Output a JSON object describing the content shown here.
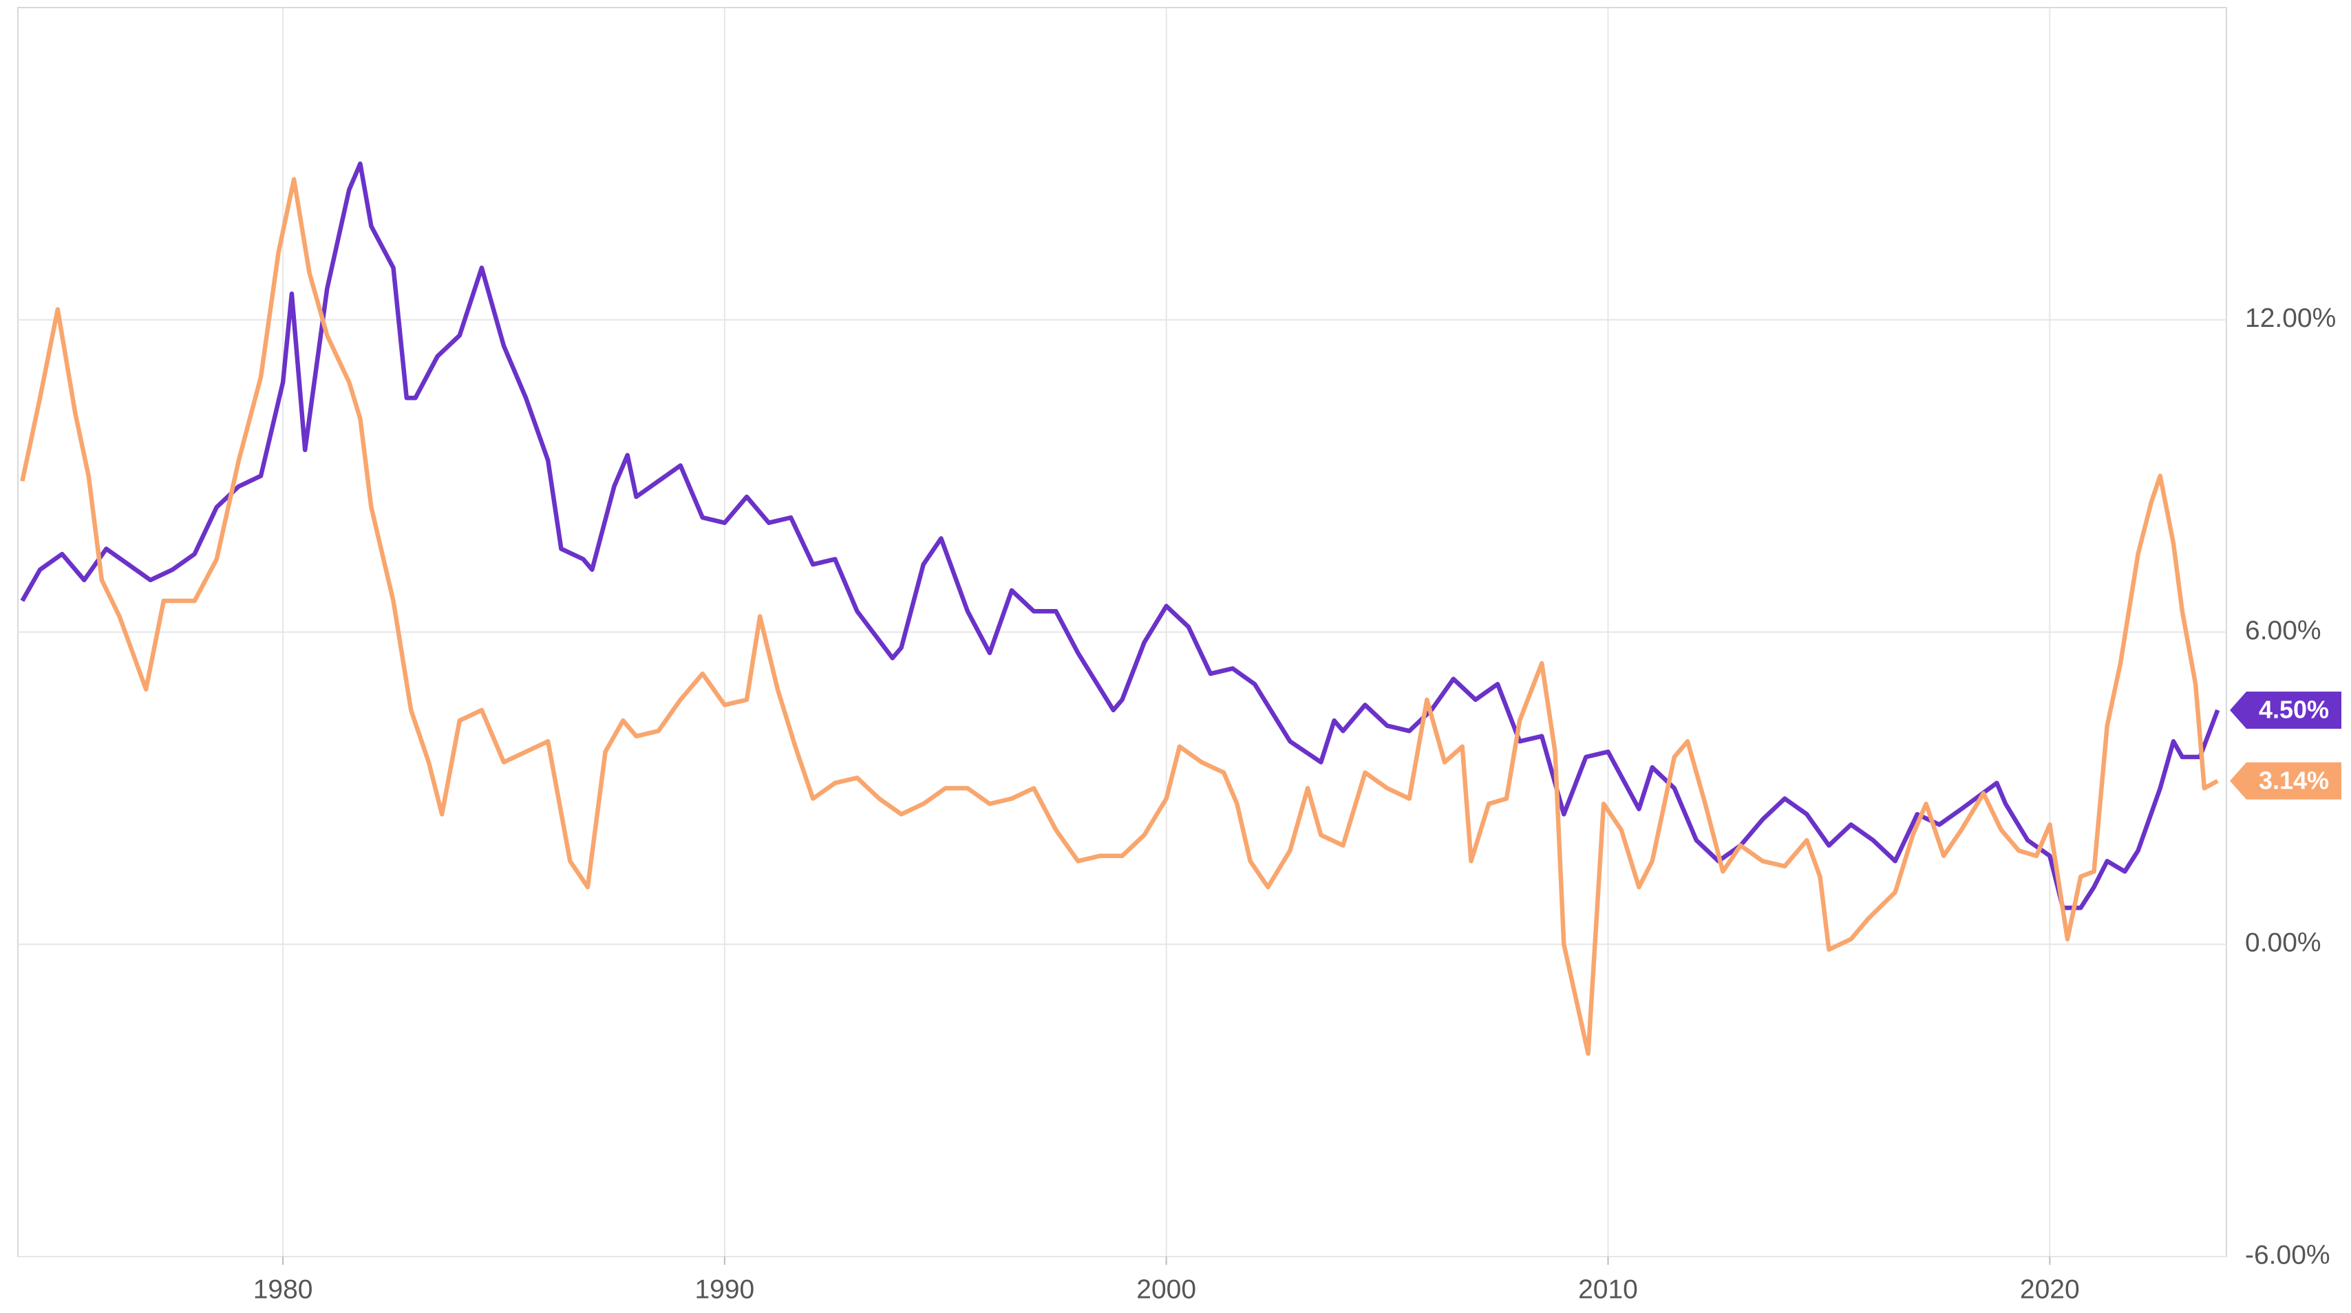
{
  "chart_data": {
    "type": "line",
    "xlim": [
      1974,
      2024
    ],
    "xticks": [
      1980,
      1990,
      2000,
      2010,
      2020
    ],
    "ylim": [
      -6,
      18
    ],
    "yticks": [
      {
        "value": -6,
        "label": "-6.00%"
      },
      {
        "value": 0,
        "label": "0.00%"
      },
      {
        "value": 6,
        "label": "6.00%"
      },
      {
        "value": 12,
        "label": "12.00%"
      }
    ],
    "grid": true,
    "series": [
      {
        "color": "#6a32c9",
        "end_label": "4.50%",
        "x": [
          1974.1,
          1974.5,
          1975,
          1975.5,
          1976,
          1976.5,
          1977,
          1977.5,
          1978,
          1978.5,
          1979,
          1979.5,
          1980,
          1980.2,
          1980.5,
          1981,
          1981.5,
          1981.75,
          1982,
          1982.5,
          1982.8,
          1983,
          1983.5,
          1984,
          1984.5,
          1985,
          1985.5,
          1986,
          1986.3,
          1986.8,
          1987,
          1987.5,
          1987.8,
          1988,
          1988.5,
          1989,
          1989.5,
          1990,
          1990.5,
          1991,
          1991.5,
          1992,
          1992.5,
          1993,
          1993.8,
          1994,
          1994.5,
          1994.9,
          1995.5,
          1996,
          1996.5,
          1997,
          1997.5,
          1998,
          1998.8,
          1999,
          1999.5,
          2000,
          2000.5,
          2001,
          2001.5,
          2002,
          2002.8,
          2003.5,
          2003.8,
          2004,
          2004.5,
          2005,
          2005.5,
          2006,
          2006.5,
          2007,
          2007.5,
          2008,
          2008.5,
          2009,
          2009.5,
          2010,
          2010.7,
          2011,
          2011.5,
          2012,
          2012.5,
          2013,
          2013.5,
          2014,
          2014.5,
          2015,
          2015.5,
          2016,
          2016.5,
          2017,
          2017.5,
          2018,
          2018.8,
          2019,
          2019.5,
          2020,
          2020.3,
          2020.7,
          2021,
          2021.3,
          2021.7,
          2022,
          2022.5,
          2022.8,
          2023,
          2023.4,
          2023.8
        ],
        "values": [
          6.6,
          7.2,
          7.5,
          7.0,
          7.6,
          7.3,
          7.0,
          7.2,
          7.5,
          8.4,
          8.8,
          9.0,
          10.8,
          12.5,
          9.5,
          12.6,
          14.5,
          15.0,
          13.8,
          13.0,
          10.5,
          10.5,
          11.3,
          11.7,
          13.0,
          11.5,
          10.5,
          9.3,
          7.6,
          7.4,
          7.2,
          8.8,
          9.4,
          8.6,
          8.9,
          9.2,
          8.2,
          8.1,
          8.6,
          8.1,
          8.2,
          7.3,
          7.4,
          6.4,
          5.5,
          5.7,
          7.3,
          7.8,
          6.4,
          5.6,
          6.8,
          6.4,
          6.4,
          5.6,
          4.5,
          4.7,
          5.8,
          6.5,
          6.1,
          5.2,
          5.3,
          5.0,
          3.9,
          3.5,
          4.3,
          4.1,
          4.6,
          4.2,
          4.1,
          4.5,
          5.1,
          4.7,
          5.0,
          3.9,
          4.0,
          2.5,
          3.6,
          3.7,
          2.6,
          3.4,
          3.0,
          2.0,
          1.6,
          1.9,
          2.4,
          2.8,
          2.5,
          1.9,
          2.3,
          2.0,
          1.6,
          2.5,
          2.3,
          2.6,
          3.1,
          2.7,
          2.0,
          1.7,
          0.7,
          0.7,
          1.1,
          1.6,
          1.4,
          1.8,
          3.0,
          3.9,
          3.6,
          3.6,
          4.5
        ]
      },
      {
        "color": "#f8a66e",
        "end_label": "3.14%",
        "x": [
          1974.1,
          1974.5,
          1974.9,
          1975.3,
          1975.6,
          1975.9,
          1976.3,
          1976.6,
          1976.9,
          1977.3,
          1977.6,
          1978,
          1978.5,
          1979,
          1979.5,
          1979.9,
          1980.25,
          1980.6,
          1981,
          1981.5,
          1981.75,
          1982,
          1982.5,
          1982.9,
          1983.3,
          1983.6,
          1984,
          1984.5,
          1985,
          1985.5,
          1986,
          1986.5,
          1986.9,
          1987.3,
          1987.7,
          1988,
          1988.5,
          1989,
          1989.5,
          1990,
          1990.5,
          1990.8,
          1991.2,
          1991.6,
          1992,
          1992.5,
          1993,
          1993.5,
          1994,
          1994.5,
          1995,
          1995.5,
          1996,
          1996.5,
          1997,
          1997.5,
          1998,
          1998.5,
          1999,
          1999.5,
          2000,
          2000.3,
          2000.8,
          2001.3,
          2001.6,
          2001.9,
          2002.3,
          2002.8,
          2003.2,
          2003.5,
          2004,
          2004.5,
          2005,
          2005.5,
          2005.9,
          2006.3,
          2006.7,
          2006.9,
          2007.3,
          2007.7,
          2008,
          2008.5,
          2008.8,
          2009,
          2009.55,
          2009.9,
          2010.3,
          2010.7,
          2011,
          2011.5,
          2011.8,
          2012.2,
          2012.6,
          2013,
          2013.5,
          2014,
          2014.5,
          2014.8,
          2015,
          2015.5,
          2015.9,
          2016.5,
          2016.9,
          2017.2,
          2017.6,
          2018,
          2018.5,
          2018.9,
          2019.3,
          2019.7,
          2020,
          2020.4,
          2020.7,
          2021,
          2021.3,
          2021.6,
          2022,
          2022.3,
          2022.5,
          2022.8,
          2023,
          2023.3,
          2023.5,
          2023.8
        ],
        "values": [
          8.9,
          10.5,
          12.2,
          10.2,
          9.0,
          7.0,
          6.3,
          5.6,
          4.9,
          6.6,
          6.6,
          6.6,
          7.4,
          9.3,
          10.9,
          13.3,
          14.7,
          12.9,
          11.7,
          10.8,
          10.1,
          8.4,
          6.6,
          4.5,
          3.5,
          2.5,
          4.3,
          4.5,
          3.5,
          3.7,
          3.9,
          1.6,
          1.1,
          3.7,
          4.3,
          4.0,
          4.1,
          4.7,
          5.2,
          4.6,
          4.7,
          6.3,
          4.9,
          3.8,
          2.8,
          3.1,
          3.2,
          2.8,
          2.5,
          2.7,
          3.0,
          3.0,
          2.7,
          2.8,
          3.0,
          2.2,
          1.6,
          1.7,
          1.7,
          2.1,
          2.8,
          3.8,
          3.5,
          3.3,
          2.7,
          1.6,
          1.1,
          1.8,
          3.0,
          2.1,
          1.9,
          3.3,
          3.0,
          2.8,
          4.7,
          3.5,
          3.8,
          1.6,
          2.7,
          2.8,
          4.3,
          5.4,
          3.7,
          0.0,
          -2.1,
          2.7,
          2.2,
          1.1,
          1.6,
          3.6,
          3.9,
          2.7,
          1.4,
          1.9,
          1.6,
          1.5,
          2.0,
          1.3,
          -0.1,
          0.1,
          0.5,
          1.0,
          2.1,
          2.7,
          1.7,
          2.2,
          2.9,
          2.2,
          1.8,
          1.7,
          2.3,
          0.1,
          1.3,
          1.4,
          4.2,
          5.4,
          7.5,
          8.5,
          9.0,
          7.7,
          6.4,
          5.0,
          3.0,
          3.14
        ]
      }
    ]
  }
}
